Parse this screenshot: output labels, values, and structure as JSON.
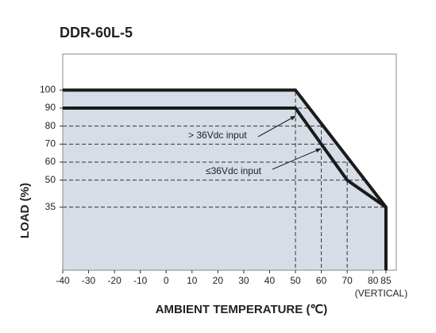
{
  "chart_data": {
    "type": "line",
    "title": "DDR-60L-5",
    "xlabel": "AMBIENT TEMPERATURE (℃)",
    "ylabel": "LOAD (%)",
    "x_note": "(VERTICAL)",
    "series": [
      {
        "name": "> 36Vdc input",
        "color": "#1a1a1a",
        "x": [
          -40,
          50,
          85,
          85
        ],
        "values": [
          100,
          100,
          35,
          0
        ]
      },
      {
        "name": "≤36Vdc input",
        "color": "#1a1a1a",
        "x": [
          -40,
          50,
          60,
          70,
          85
        ],
        "values": [
          90,
          90,
          70,
          50,
          35
        ]
      }
    ],
    "fill_color": "#d6dde6",
    "xlim": [
      -40,
      89
    ],
    "xticks": [
      -40,
      -30,
      -20,
      -10,
      0,
      10,
      20,
      30,
      40,
      50,
      60,
      70,
      80,
      85
    ],
    "ylim": [
      0,
      120
    ],
    "yticks": [
      100,
      90,
      80,
      70,
      60,
      50,
      35
    ]
  }
}
